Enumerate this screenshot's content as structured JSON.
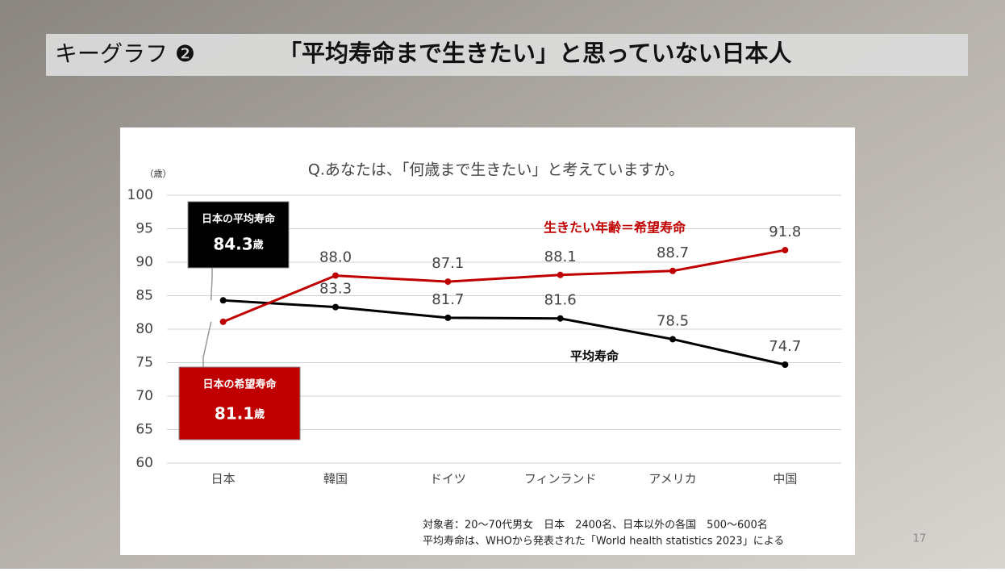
{
  "header": {
    "label": "キーグラフ ❷",
    "title": "「平均寿命まで生きたい」と思っていない日本人"
  },
  "chart_data": {
    "type": "line",
    "title": "Q.あなたは、「何歳まで生きたい」と考えていますか。",
    "ylabel": "（歳）",
    "categories": [
      "日本",
      "韓国",
      "ドイツ",
      "フィンランド",
      "アメリカ",
      "中国"
    ],
    "series": [
      {
        "name": "平均寿命",
        "color": "#000000",
        "values": [
          84.3,
          83.3,
          81.7,
          81.6,
          78.5,
          74.7
        ],
        "value_labels": [
          "84.3",
          "83.3",
          "81.7",
          "81.6",
          "78.5",
          "74.7"
        ]
      },
      {
        "name": "生きたい年齢＝希望寿命",
        "color": "#c00000",
        "values": [
          81.1,
          88.0,
          87.1,
          88.1,
          88.7,
          91.8
        ],
        "value_labels": [
          "81.1",
          "88.0",
          "87.1",
          "88.1",
          "88.7",
          "91.8"
        ]
      }
    ],
    "ylim": [
      60,
      100
    ],
    "yticks": [
      60,
      65,
      70,
      75,
      80,
      85,
      90,
      95,
      100
    ],
    "grid": true,
    "callouts": [
      {
        "title": "日本の平均寿命",
        "unit": "歳"
      },
      {
        "title": "日本の希望寿命",
        "unit": "歳"
      }
    ],
    "footnotes": [
      "対象者：20～70代男女　日本　2400名、日本以外の各国　500～600名",
      "平均寿命は、WHOから発表された「World health statistics 2023」による"
    ]
  },
  "page_number": "17"
}
